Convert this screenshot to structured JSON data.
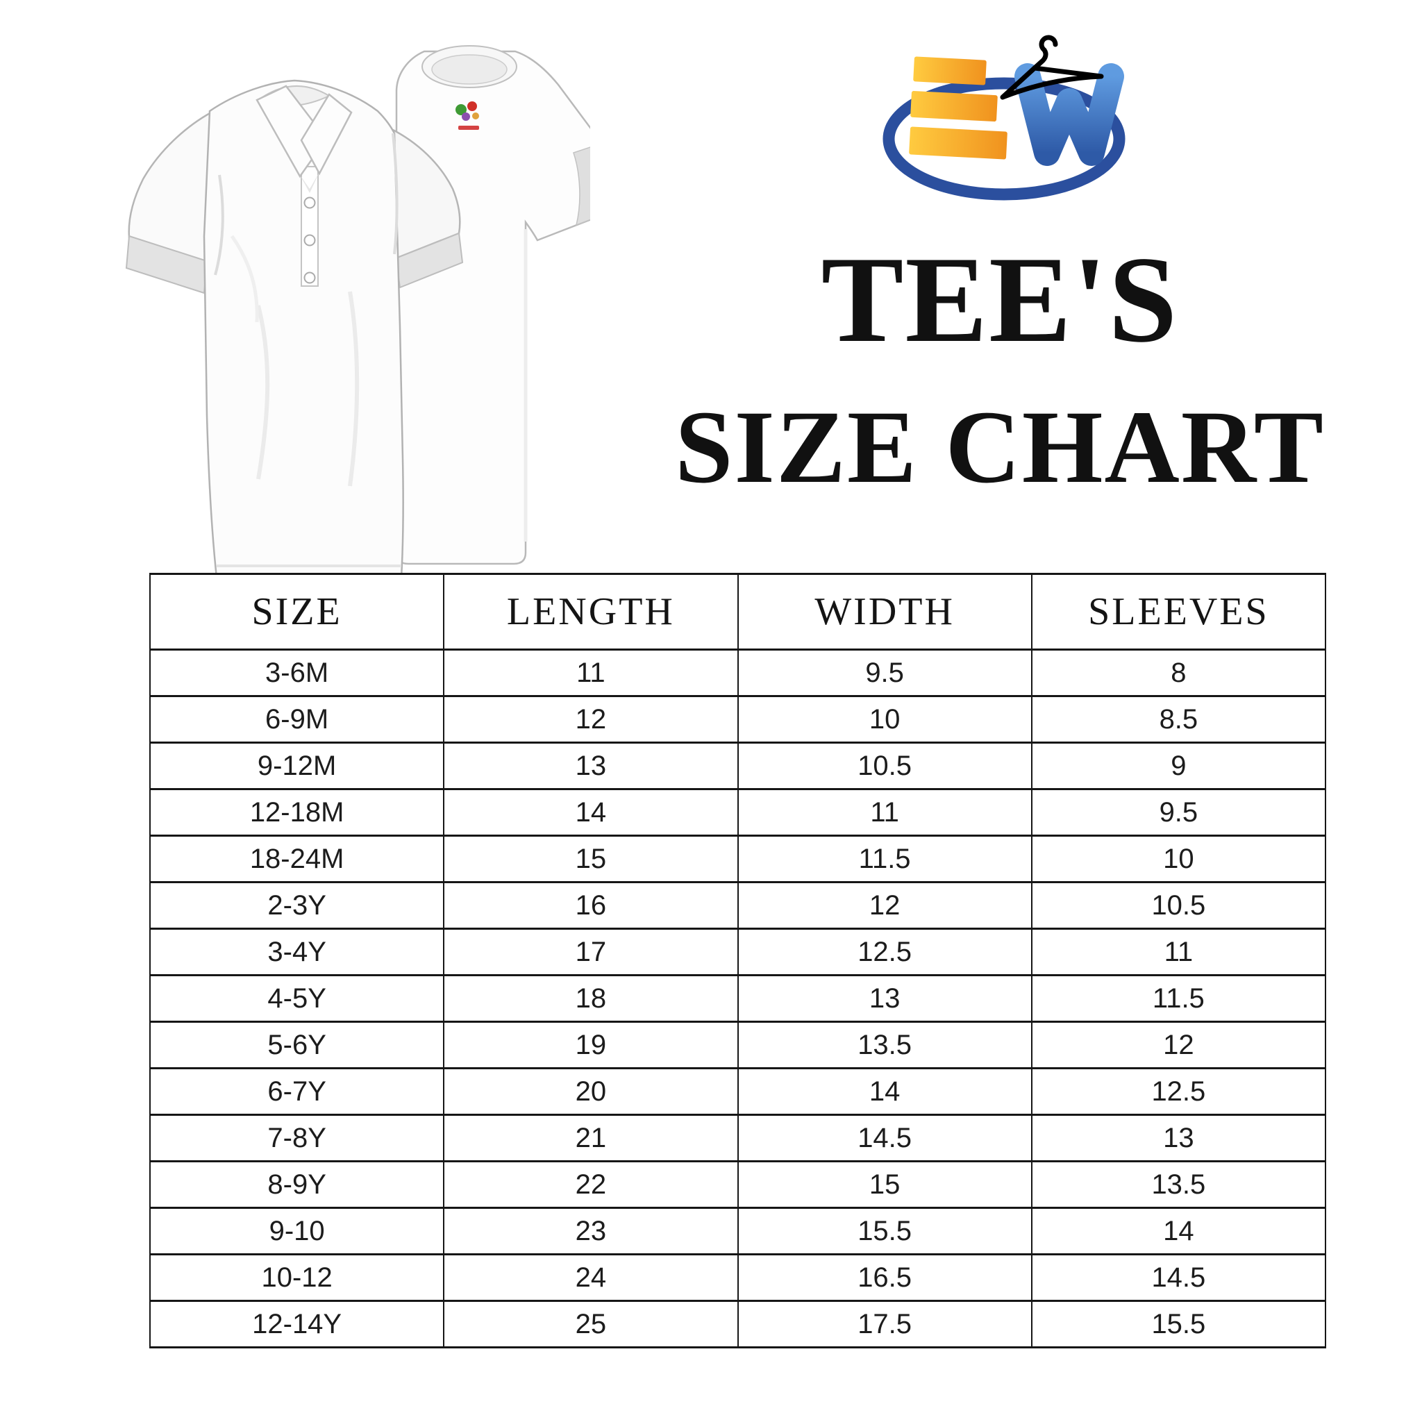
{
  "hero": {
    "polo_shirt_label": "white polo shirt",
    "tee_shirt_label": "white crew-neck t-shirt"
  },
  "logo": {
    "label": "EW apparel logo",
    "colors": {
      "bars_orange_light": "#FFCB40",
      "bars_orange_dark": "#F0921E",
      "w_blue_light": "#5F9BE0",
      "w_blue_dark": "#2E5AA7",
      "ring_blue": "#2B4F9E",
      "hanger_black": "#000000"
    }
  },
  "title": {
    "line1": "TEE'S",
    "line2": "SIZE CHART"
  },
  "table": {
    "headers": [
      "SIZE",
      "LENGTH",
      "WIDTH",
      "SLEEVES"
    ],
    "rows": [
      [
        "3-6M",
        "11",
        "9.5",
        "8"
      ],
      [
        "6-9M",
        "12",
        "10",
        "8.5"
      ],
      [
        "9-12M",
        "13",
        "10.5",
        "9"
      ],
      [
        "12-18M",
        "14",
        "11",
        "9.5"
      ],
      [
        "18-24M",
        "15",
        "11.5",
        "10"
      ],
      [
        "2-3Y",
        "16",
        "12",
        "10.5"
      ],
      [
        "3-4Y",
        "17",
        "12.5",
        "11"
      ],
      [
        "4-5Y",
        "18",
        "13",
        "11.5"
      ],
      [
        "5-6Y",
        "19",
        "13.5",
        "12"
      ],
      [
        "6-7Y",
        "20",
        "14",
        "12.5"
      ],
      [
        "7-8Y",
        "21",
        "14.5",
        "13"
      ],
      [
        "8-9Y",
        "22",
        "15",
        "13.5"
      ],
      [
        "9-10",
        "23",
        "15.5",
        "14"
      ],
      [
        "10-12",
        "24",
        "16.5",
        "14.5"
      ],
      [
        "12-14Y",
        "25",
        "17.5",
        "15.5"
      ]
    ],
    "border_color": "#161616",
    "text_color": "#1c1c1c"
  }
}
